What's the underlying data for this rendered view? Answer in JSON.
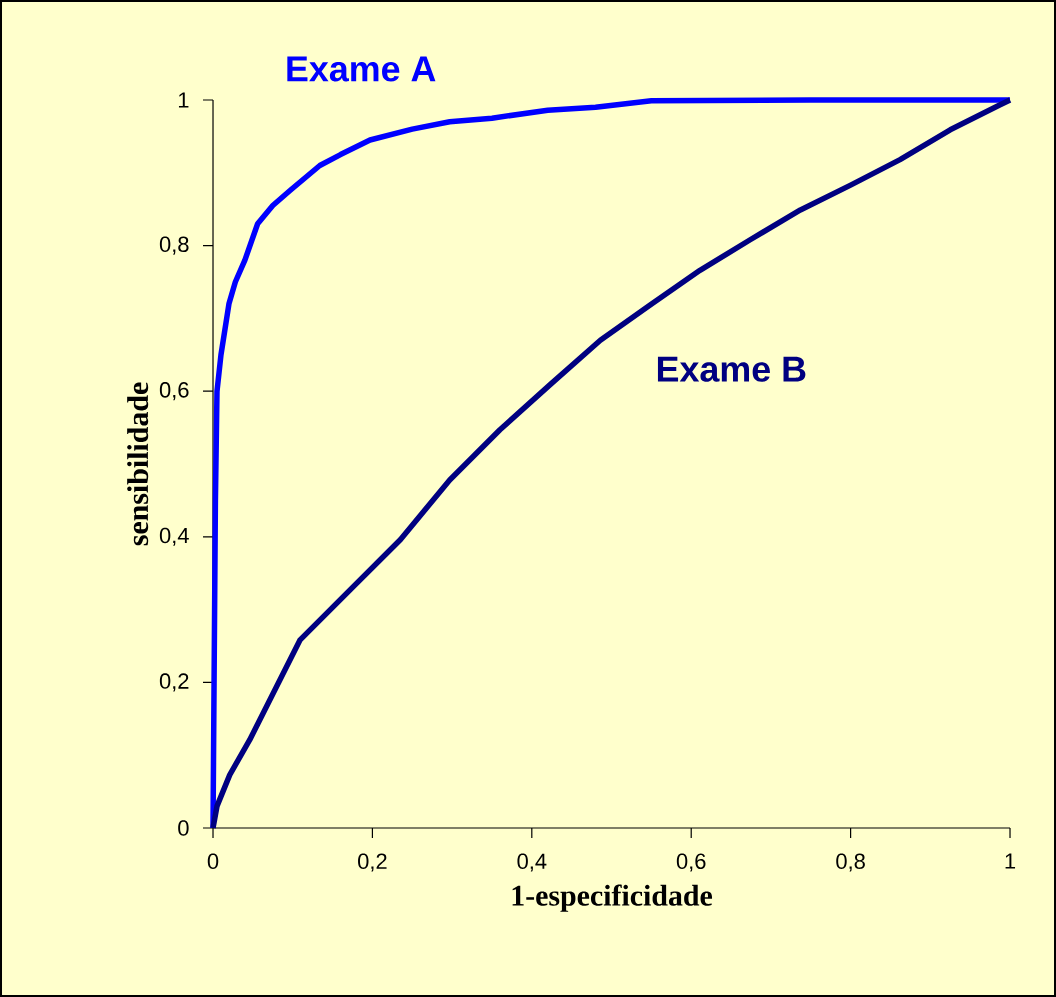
{
  "chart_data": {
    "type": "line",
    "xlabel": "1-especificidade",
    "ylabel": "sensibilidade",
    "xlim": [
      0,
      1
    ],
    "ylim": [
      0,
      1
    ],
    "xticks": [
      0,
      {
        "value": 0.2,
        "label": "0,2"
      },
      {
        "value": 0.4,
        "label": "0,4"
      },
      {
        "value": 0.6,
        "label": "0,6"
      },
      {
        "value": 0.8,
        "label": "0,8"
      },
      1
    ],
    "yticks": [
      0,
      {
        "value": 0.2,
        "label": "0,2"
      },
      {
        "value": 0.4,
        "label": "0,4"
      },
      {
        "value": 0.6,
        "label": "0,6"
      },
      {
        "value": 0.8,
        "label": "0,8"
      },
      1
    ],
    "grid": false,
    "legend": false,
    "series": [
      {
        "name": "Exame A",
        "color": "#0000ff",
        "x": [
          0,
          0.003,
          0.005,
          0.01,
          0.02,
          0.028,
          0.04,
          0.056,
          0.075,
          0.097,
          0.134,
          0.16,
          0.197,
          0.25,
          0.297,
          0.35,
          0.42,
          0.48,
          0.55,
          0.75,
          1
        ],
        "values": [
          0,
          0.45,
          0.6,
          0.65,
          0.72,
          0.75,
          0.78,
          0.83,
          0.855,
          0.876,
          0.91,
          0.925,
          0.945,
          0.96,
          0.97,
          0.975,
          0.986,
          0.99,
          0.999,
          1,
          1
        ]
      },
      {
        "name": "Exame B",
        "color": "#000080",
        "x": [
          0,
          0.005,
          0.021,
          0.046,
          0.109,
          0.172,
          0.235,
          0.297,
          0.36,
          0.423,
          0.486,
          0.548,
          0.611,
          0.674,
          0.737,
          0.8,
          0.862,
          0.925,
          0.987,
          1
        ],
        "values": [
          0,
          0.03,
          0.073,
          0.121,
          0.258,
          0.327,
          0.396,
          0.478,
          0.547,
          0.609,
          0.67,
          0.718,
          0.766,
          0.808,
          0.849,
          0.883,
          0.918,
          0.959,
          0.993,
          1
        ]
      }
    ]
  }
}
